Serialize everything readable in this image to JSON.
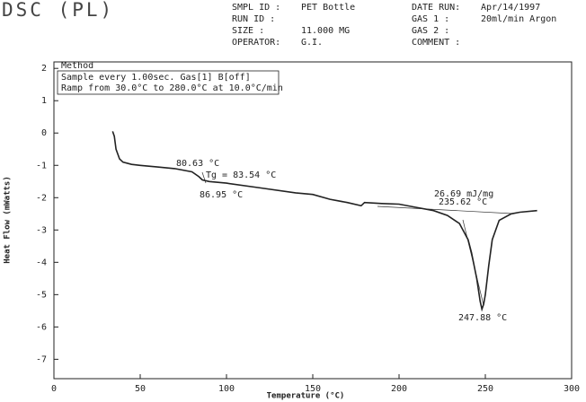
{
  "header": {
    "fields": [
      {
        "label": "SMPL ID :",
        "value": "PET Bottle"
      },
      {
        "label": "RUN ID :"
      },
      {
        "label": "SIZE :",
        "value": "11.000 MG"
      },
      {
        "label": "OPERATOR:",
        "value": "G.I."
      },
      {
        "label": "DATE RUN:",
        "value": "Apr/14/1997"
      },
      {
        "label": "GAS 1 :",
        "value": "20ml/min Argon"
      },
      {
        "label": "GAS 2 :"
      },
      {
        "label": "COMMENT :"
      }
    ]
  },
  "method": {
    "title": "Method",
    "lines": [
      "Sample every 1.00sec. Gas[1] B[off]",
      "Ramp from 30.0°C to 280.0°C at 10.0°C/min"
    ]
  },
  "chart_data": {
    "type": "line",
    "title": "DSC (PL)",
    "x_label": "Temperature (°C)",
    "y_label": "Heat Flow (mWatts)",
    "x": [
      34,
      35,
      36,
      38,
      40,
      45,
      50,
      60,
      70,
      80,
      84,
      86,
      90,
      100,
      120,
      140,
      150,
      160,
      170,
      178,
      180,
      190,
      200,
      210,
      220,
      228,
      235,
      240,
      242,
      245,
      247,
      248,
      249,
      250,
      252,
      254,
      258,
      265,
      270,
      280
    ],
    "values": [
      0.05,
      -0.1,
      -0.5,
      -0.8,
      -0.9,
      -0.97,
      -1.0,
      -1.05,
      -1.1,
      -1.2,
      -1.35,
      -1.45,
      -1.5,
      -1.55,
      -1.7,
      -1.85,
      -1.9,
      -2.05,
      -2.15,
      -2.25,
      -2.15,
      -2.18,
      -2.2,
      -2.3,
      -2.4,
      -2.55,
      -2.8,
      -3.3,
      -3.7,
      -4.5,
      -5.2,
      -5.45,
      -5.3,
      -5.0,
      -4.1,
      -3.3,
      -2.7,
      -2.5,
      -2.45,
      -2.4
    ],
    "color": "#222",
    "xlim": [
      0,
      300
    ],
    "xticks": [
      0,
      50,
      100,
      150,
      200,
      250,
      300
    ],
    "ylim": [
      -7.6,
      2.2
    ],
    "yticks": [
      2,
      1,
      0,
      -1,
      -2,
      -3,
      -4,
      -5,
      -6,
      -7
    ],
    "grid": false,
    "annotations": [
      "80.63 °C",
      "Tg = 83.54 °C",
      "86.95 °C",
      "26.69 mJ/mg",
      "235.62 °C",
      "247.88 °C"
    ]
  }
}
